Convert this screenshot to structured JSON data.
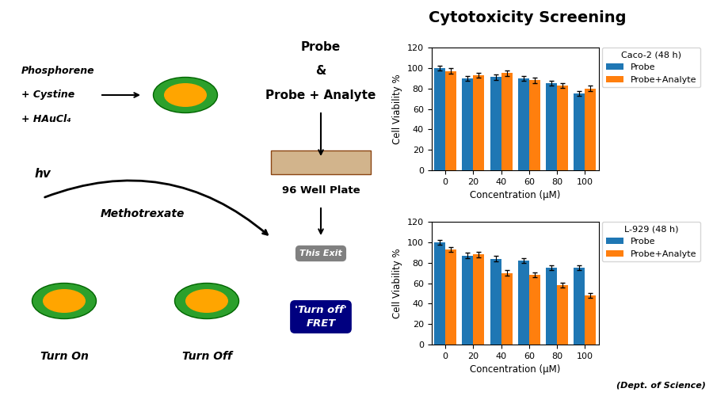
{
  "title": "Cytotoxicity Screening",
  "annotations": [
    "Phosphorene",
    "+ Cystine",
    "+ HAuCl₄",
    "hv",
    "Methotrexate",
    "Turn On",
    "Turn Off",
    "Probe",
    "&",
    "Probe + Analyte",
    "96 Well Plate",
    "This Exit",
    "'Turn off'\nFRET",
    "(Dept. of Science)"
  ],
  "chart_data": [
    {
      "type": "bar",
      "legend_title": "Caco-2 (48 h)",
      "categories": [
        "0",
        "20",
        "40",
        "60",
        "80",
        "100"
      ],
      "series": [
        {
          "name": "Probe",
          "values": [
            100,
            90,
            91,
            90,
            85,
            75
          ],
          "errors": [
            2.5,
            2.5,
            2.5,
            2.5,
            2.5,
            2.5
          ]
        },
        {
          "name": "Probe+Analyte",
          "values": [
            97,
            93,
            95,
            88,
            83,
            80
          ],
          "errors": [
            2.5,
            2.5,
            2.5,
            2.5,
            2.5,
            2.5
          ]
        }
      ],
      "xlabel": "Concentration (μM)",
      "ylabel": "Cell Viability %",
      "ylim": [
        0,
        120
      ],
      "yticks": [
        0,
        20,
        40,
        60,
        80,
        100,
        120
      ],
      "legend": "upper left"
    },
    {
      "type": "bar",
      "legend_title": "L-929 (48 h)",
      "categories": [
        "0",
        "20",
        "40",
        "60",
        "80",
        "100"
      ],
      "series": [
        {
          "name": "Probe",
          "values": [
            100,
            87,
            84,
            82,
            75,
            75
          ],
          "errors": [
            2.5,
            2.5,
            2.5,
            2.5,
            2.5,
            2.5
          ]
        },
        {
          "name": "Probe+Analyte",
          "values": [
            93,
            88,
            70,
            68,
            58,
            48
          ],
          "errors": [
            2.5,
            2.5,
            2.5,
            2.5,
            2.5,
            2.5
          ]
        }
      ],
      "xlabel": "Concentration (μM)",
      "ylabel": "Cell Viability %",
      "ylim": [
        0,
        120
      ],
      "yticks": [
        0,
        20,
        40,
        60,
        80,
        100,
        120
      ],
      "legend": "upper left"
    }
  ]
}
